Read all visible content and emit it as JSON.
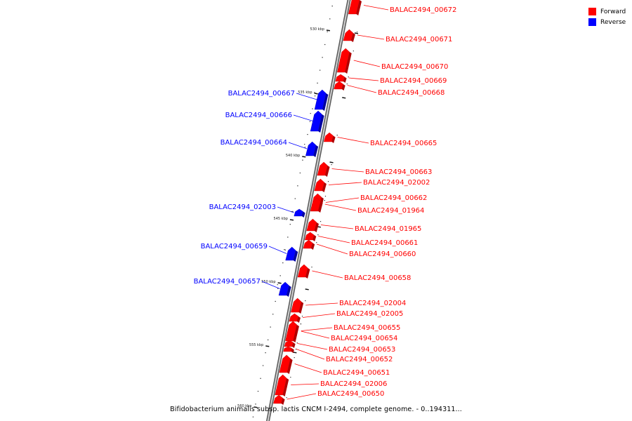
{
  "legend": {
    "items": [
      {
        "label": "Forward",
        "color": "#ff0000"
      },
      {
        "label": "Reverse",
        "color": "#0000ff"
      }
    ]
  },
  "caption": "Bifidobacterium animalis subsp. lactis CNCM I-2494, complete genome. - 0..194311...",
  "scale": {
    "ticks": [
      "530 kbp",
      "535 kbp",
      "540 kbp",
      "545 kbp",
      "550 kbp",
      "555 kbp",
      "560 kbp"
    ]
  },
  "genes": [
    {
      "id": "BALAC2494_00672",
      "strand": "forward"
    },
    {
      "id": "BALAC2494_00671",
      "strand": "forward"
    },
    {
      "id": "BALAC2494_00670",
      "strand": "forward"
    },
    {
      "id": "BALAC2494_00669",
      "strand": "forward"
    },
    {
      "id": "BALAC2494_00668",
      "strand": "forward"
    },
    {
      "id": "BALAC2494_00667",
      "strand": "reverse"
    },
    {
      "id": "BALAC2494_00666",
      "strand": "reverse"
    },
    {
      "id": "BALAC2494_00665",
      "strand": "forward"
    },
    {
      "id": "BALAC2494_00664",
      "strand": "reverse"
    },
    {
      "id": "BALAC2494_00663",
      "strand": "forward"
    },
    {
      "id": "BALAC2494_02002",
      "strand": "forward"
    },
    {
      "id": "BALAC2494_00662",
      "strand": "forward"
    },
    {
      "id": "BALAC2494_02003",
      "strand": "reverse"
    },
    {
      "id": "BALAC2494_01964",
      "strand": "forward"
    },
    {
      "id": "BALAC2494_01965",
      "strand": "forward"
    },
    {
      "id": "BALAC2494_00661",
      "strand": "forward"
    },
    {
      "id": "BALAC2494_00660",
      "strand": "forward"
    },
    {
      "id": "BALAC2494_00659",
      "strand": "reverse"
    },
    {
      "id": "BALAC2494_00658",
      "strand": "forward"
    },
    {
      "id": "BALAC2494_00657",
      "strand": "reverse"
    },
    {
      "id": "BALAC2494_02004",
      "strand": "forward"
    },
    {
      "id": "BALAC2494_02005",
      "strand": "forward"
    },
    {
      "id": "BALAC2494_00655",
      "strand": "forward"
    },
    {
      "id": "BALAC2494_00654",
      "strand": "forward"
    },
    {
      "id": "BALAC2494_00653",
      "strand": "forward"
    },
    {
      "id": "BALAC2494_00652",
      "strand": "forward"
    },
    {
      "id": "BALAC2494_00651",
      "strand": "forward"
    },
    {
      "id": "BALAC2494_02006",
      "strand": "forward"
    },
    {
      "id": "BALAC2494_00650",
      "strand": "forward"
    }
  ]
}
